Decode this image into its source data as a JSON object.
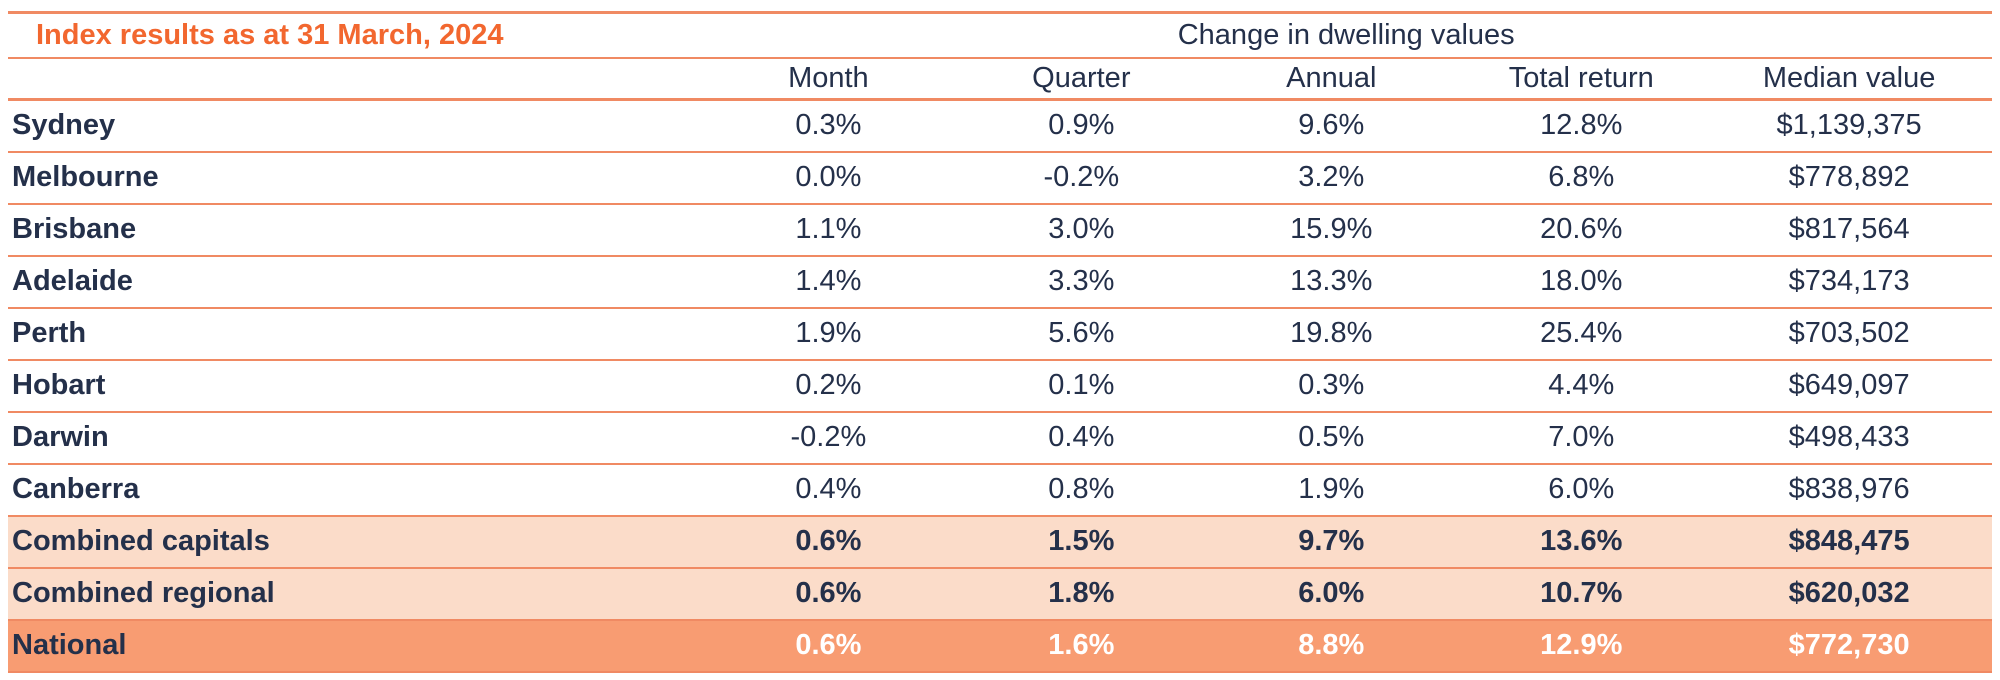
{
  "colors": {
    "accent_orange": "#F2672F",
    "line_salmon": "#F08A63",
    "text_navy": "#24304A",
    "subtotal_row_bg": "#FBDCC9",
    "total_row_bg": "#F89C72",
    "total_row_value_text": "#FFFFFF"
  },
  "chart_data": {
    "type": "table",
    "title": "Index results as at 31 March, 2024",
    "group_header": "Change in dwelling values",
    "columns": [
      "Month",
      "Quarter",
      "Annual",
      "Total return",
      "Median value"
    ],
    "rows": [
      {
        "label": "Sydney",
        "month": "0.3%",
        "quarter": "0.9%",
        "annual": "9.6%",
        "total_return": "12.8%",
        "median_value": "$1,139,375",
        "style": "normal"
      },
      {
        "label": "Melbourne",
        "month": "0.0%",
        "quarter": "-0.2%",
        "annual": "3.2%",
        "total_return": "6.8%",
        "median_value": "$778,892",
        "style": "normal"
      },
      {
        "label": "Brisbane",
        "month": "1.1%",
        "quarter": "3.0%",
        "annual": "15.9%",
        "total_return": "20.6%",
        "median_value": "$817,564",
        "style": "normal"
      },
      {
        "label": "Adelaide",
        "month": "1.4%",
        "quarter": "3.3%",
        "annual": "13.3%",
        "total_return": "18.0%",
        "median_value": "$734,173",
        "style": "normal"
      },
      {
        "label": "Perth",
        "month": "1.9%",
        "quarter": "5.6%",
        "annual": "19.8%",
        "total_return": "25.4%",
        "median_value": "$703,502",
        "style": "normal"
      },
      {
        "label": "Hobart",
        "month": "0.2%",
        "quarter": "0.1%",
        "annual": "0.3%",
        "total_return": "4.4%",
        "median_value": "$649,097",
        "style": "normal"
      },
      {
        "label": "Darwin",
        "month": "-0.2%",
        "quarter": "0.4%",
        "annual": "0.5%",
        "total_return": "7.0%",
        "median_value": "$498,433",
        "style": "normal"
      },
      {
        "label": "Canberra",
        "month": "0.4%",
        "quarter": "0.8%",
        "annual": "1.9%",
        "total_return": "6.0%",
        "median_value": "$838,976",
        "style": "normal"
      },
      {
        "label": "Combined capitals",
        "month": "0.6%",
        "quarter": "1.5%",
        "annual": "9.7%",
        "total_return": "13.6%",
        "median_value": "$848,475",
        "style": "subtotal"
      },
      {
        "label": "Combined regional",
        "month": "0.6%",
        "quarter": "1.8%",
        "annual": "6.0%",
        "total_return": "10.7%",
        "median_value": "$620,032",
        "style": "subtotal"
      },
      {
        "label": "National",
        "month": "0.6%",
        "quarter": "1.6%",
        "annual": "8.8%",
        "total_return": "12.9%",
        "median_value": "$772,730",
        "style": "total"
      }
    ]
  }
}
